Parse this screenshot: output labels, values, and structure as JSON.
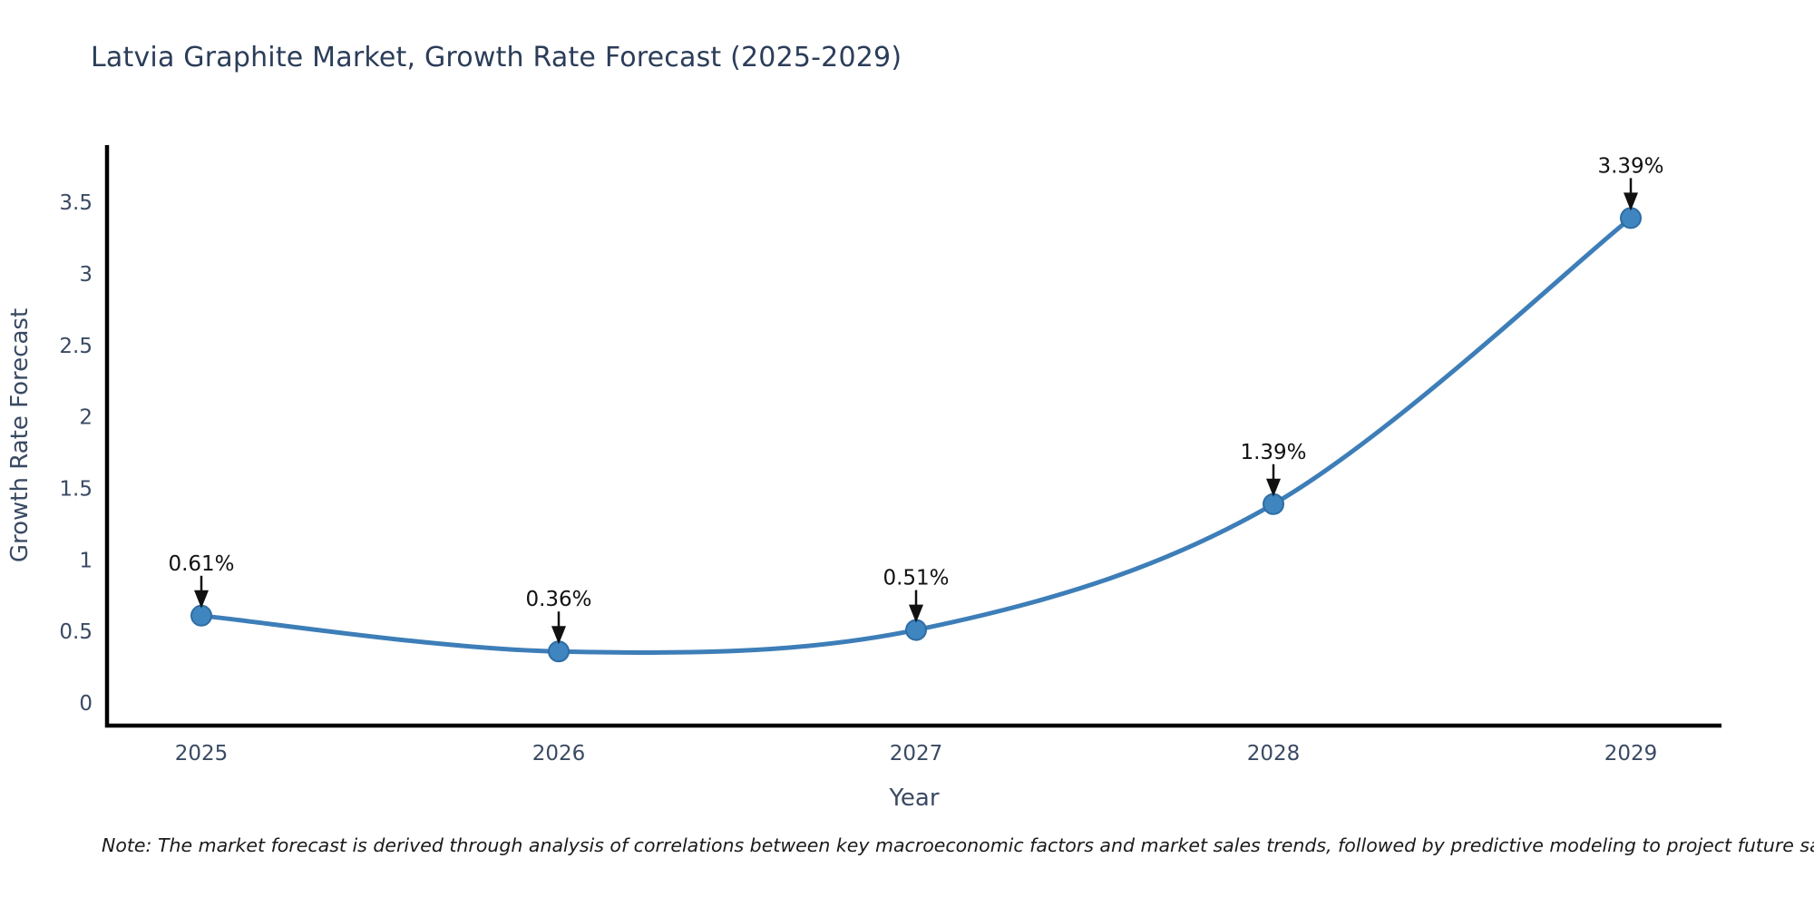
{
  "title": "Latvia Graphite Market, Growth Rate Forecast (2025-2029)",
  "note": "Note: The market forecast is derived through analysis of correlations between key macroeconomic factors and market sales trends, followed by predictive modeling to project future sales",
  "chart_data": {
    "type": "line",
    "title": "Latvia Graphite Market, Growth Rate Forecast (2025-2029)",
    "xlabel": "Year",
    "ylabel": "Growth Rate Forecast",
    "x": [
      2025,
      2026,
      2027,
      2028,
      2029
    ],
    "values": [
      0.61,
      0.36,
      0.51,
      1.39,
      3.39
    ],
    "point_labels": [
      "0.61%",
      "0.36%",
      "0.51%",
      "1.39%",
      "3.39%"
    ],
    "xtick_labels": [
      "2025",
      "2026",
      "2027",
      "2028",
      "2029"
    ],
    "yticks": [
      0,
      0.5,
      1,
      1.5,
      2,
      2.5,
      3,
      3.5
    ],
    "ytick_labels": [
      "0",
      "0.5",
      "1",
      "1.5",
      "2",
      "2.5",
      "3",
      "3.5"
    ],
    "ylim": [
      -0.16,
      3.9
    ],
    "grid": false,
    "legend": false,
    "curve": "spline",
    "annotations_have_arrows": true,
    "colors": {
      "line": "#3d7eb8",
      "marker_fill": "#3f86c0",
      "marker_edge": "#2e6da4",
      "axis_line": "#000000",
      "tick_text": "#3a4a63",
      "axis_title_text": "#3a4a63",
      "title_text": "#2b3d59",
      "annotation_text": "#111111",
      "annotation_arrow": "#111111",
      "background": "#ffffff"
    }
  }
}
